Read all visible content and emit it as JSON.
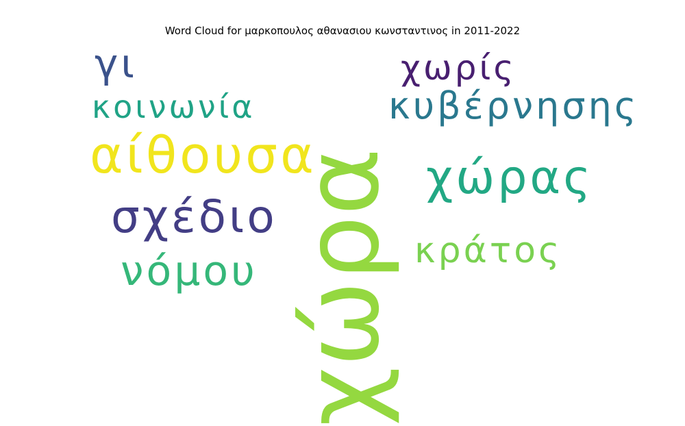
{
  "chart_data": {
    "type": "wordcloud",
    "title": "Word Cloud for μαρκοπουλος αθανασιου κωνσταντινος in 2011-2022",
    "words": [
      {
        "text": "χώρα",
        "weight": 1.0,
        "color": "#94d840",
        "orientation": "vertical"
      },
      {
        "text": "αίθουσα",
        "weight": 0.49,
        "color": "#f1e51d",
        "orientation": "horizontal"
      },
      {
        "text": "σχέδιο",
        "weight": 0.44,
        "color": "#433e85",
        "orientation": "horizontal"
      },
      {
        "text": "χώρας",
        "weight": 0.45,
        "color": "#22a884",
        "orientation": "horizontal"
      },
      {
        "text": "νόμου",
        "weight": 0.4,
        "color": "#35b779",
        "orientation": "horizontal"
      },
      {
        "text": "κυβέρνησης",
        "weight": 0.36,
        "color": "#2a788e",
        "orientation": "horizontal"
      },
      {
        "text": "κράτος",
        "weight": 0.35,
        "color": "#7ad151",
        "orientation": "horizontal"
      },
      {
        "text": "κοινωνία",
        "weight": 0.31,
        "color": "#20a386",
        "orientation": "horizontal"
      },
      {
        "text": "χωρίς",
        "weight": 0.33,
        "color": "#481f70",
        "orientation": "horizontal"
      },
      {
        "text": "γι",
        "weight": 0.39,
        "color": "#3b528b",
        "orientation": "horizontal"
      }
    ]
  }
}
